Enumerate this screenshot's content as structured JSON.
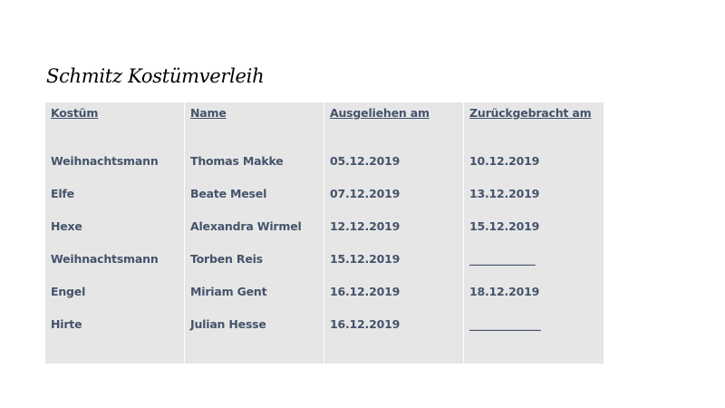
{
  "title": "Schmitz Kostümverleih",
  "table": {
    "headers": [
      "Kostüm",
      "Name",
      "Ausgeliehen am",
      "Zurückgebracht am"
    ],
    "rows": [
      [
        "Weihnachtsmann",
        "Thomas Makke",
        "05.12.2019",
        "10.12.2019"
      ],
      [
        "Elfe",
        "Beate Mesel",
        "07.12.2019",
        "13.12.2019"
      ],
      [
        "Hexe",
        "Alexandra Wirmel",
        "12.12.2019",
        "15.12.2019"
      ],
      [
        "Weihnachtsmann",
        "Torben Reis",
        "15.12.2019",
        "____________"
      ],
      [
        "Engel",
        "Miriam Gent",
        "16.12.2019",
        "18.12.2019"
      ],
      [
        "Hirte",
        "Julian Hesse",
        "16.12.2019",
        "_____________"
      ]
    ]
  },
  "colors": {
    "text": "#44546a",
    "table_background": "#e7e6e7"
  }
}
